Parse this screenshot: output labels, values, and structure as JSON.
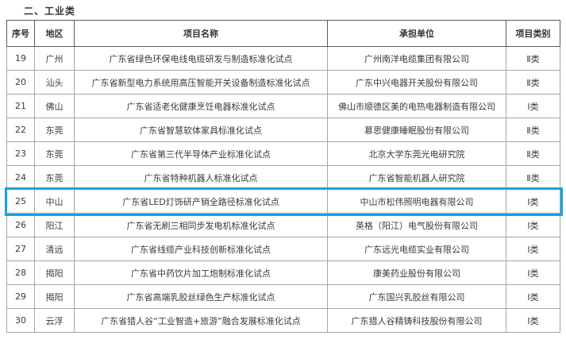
{
  "title": "二、工业类",
  "colors": {
    "highlight": "#18a2dc",
    "header_border": "#5a5a5a",
    "cell_border": "#a6a6a6",
    "text": "#333333"
  },
  "table": {
    "headers": [
      "序号",
      "地区",
      "项目名称",
      "承担单位",
      "项目类别"
    ],
    "rows": [
      {
        "no": "19",
        "region": "广州",
        "project": "广东省绿色环保电线电缆研发与制造标准化试点",
        "unit": "广州南洋电缆集团有限公司",
        "category": "Ⅱ类",
        "highlighted": false
      },
      {
        "no": "20",
        "region": "汕头",
        "project": "广东省新型电力系统用高压智能开关设备制造标准化试点",
        "unit": "广东中兴电器开关股份有限公司",
        "category": "Ⅱ类",
        "highlighted": false
      },
      {
        "no": "21",
        "region": "佛山",
        "project": "广东省适老化健康烹饪电器标准化试点",
        "unit": "佛山市顺德区美的电热电器制造有限公司",
        "category": "Ⅰ类",
        "highlighted": false
      },
      {
        "no": "22",
        "region": "东莞",
        "project": "广东省智慧软体家具标准化试点",
        "unit": "慕思健康睡眠股份有限公司",
        "category": "Ⅱ类",
        "highlighted": false
      },
      {
        "no": "23",
        "region": "东莞",
        "project": "广东省第三代半导体产业标准化试点",
        "unit": "北京大学东莞光电研究院",
        "category": "Ⅱ类",
        "highlighted": false
      },
      {
        "no": "24",
        "region": "东莞",
        "project": "广东省特种机器人标准化试点",
        "unit": "广东省智能机器人研究院",
        "category": "Ⅱ类",
        "highlighted": false
      },
      {
        "no": "25",
        "region": "中山",
        "project": "广东省LED灯饰研产销全路径标准化试点",
        "unit": "中山市松伟照明电器有限公司",
        "category": "Ⅰ类",
        "highlighted": true
      },
      {
        "no": "26",
        "region": "阳江",
        "project": "广东省无刷三相同步发电机标准化试点",
        "unit": "英格（阳江）电气股份有限公司",
        "category": "Ⅰ类",
        "highlighted": false
      },
      {
        "no": "27",
        "region": "清远",
        "project": "广东省线缆产业科技创新标准化试点",
        "unit": "广东远光电缆实业有限公司",
        "category": "Ⅰ类",
        "highlighted": false
      },
      {
        "no": "28",
        "region": "揭阳",
        "project": "广东省中药饮片加工炮制标准化试点",
        "unit": "康美药业股份有限公司",
        "category": "Ⅰ类",
        "highlighted": false
      },
      {
        "no": "29",
        "region": "揭阳",
        "project": "广东省高端乳胶丝绿色生产标准化试点",
        "unit": "广东国兴乳胶丝有限公司",
        "category": "Ⅰ类",
        "highlighted": false
      },
      {
        "no": "30",
        "region": "云浮",
        "project": "广东省猎人谷“工业智造+旅游”融合发展标准化试点",
        "unit": "广东猎人谷精铸科技股份有限公司",
        "category": "Ⅰ类",
        "highlighted": false
      }
    ]
  }
}
